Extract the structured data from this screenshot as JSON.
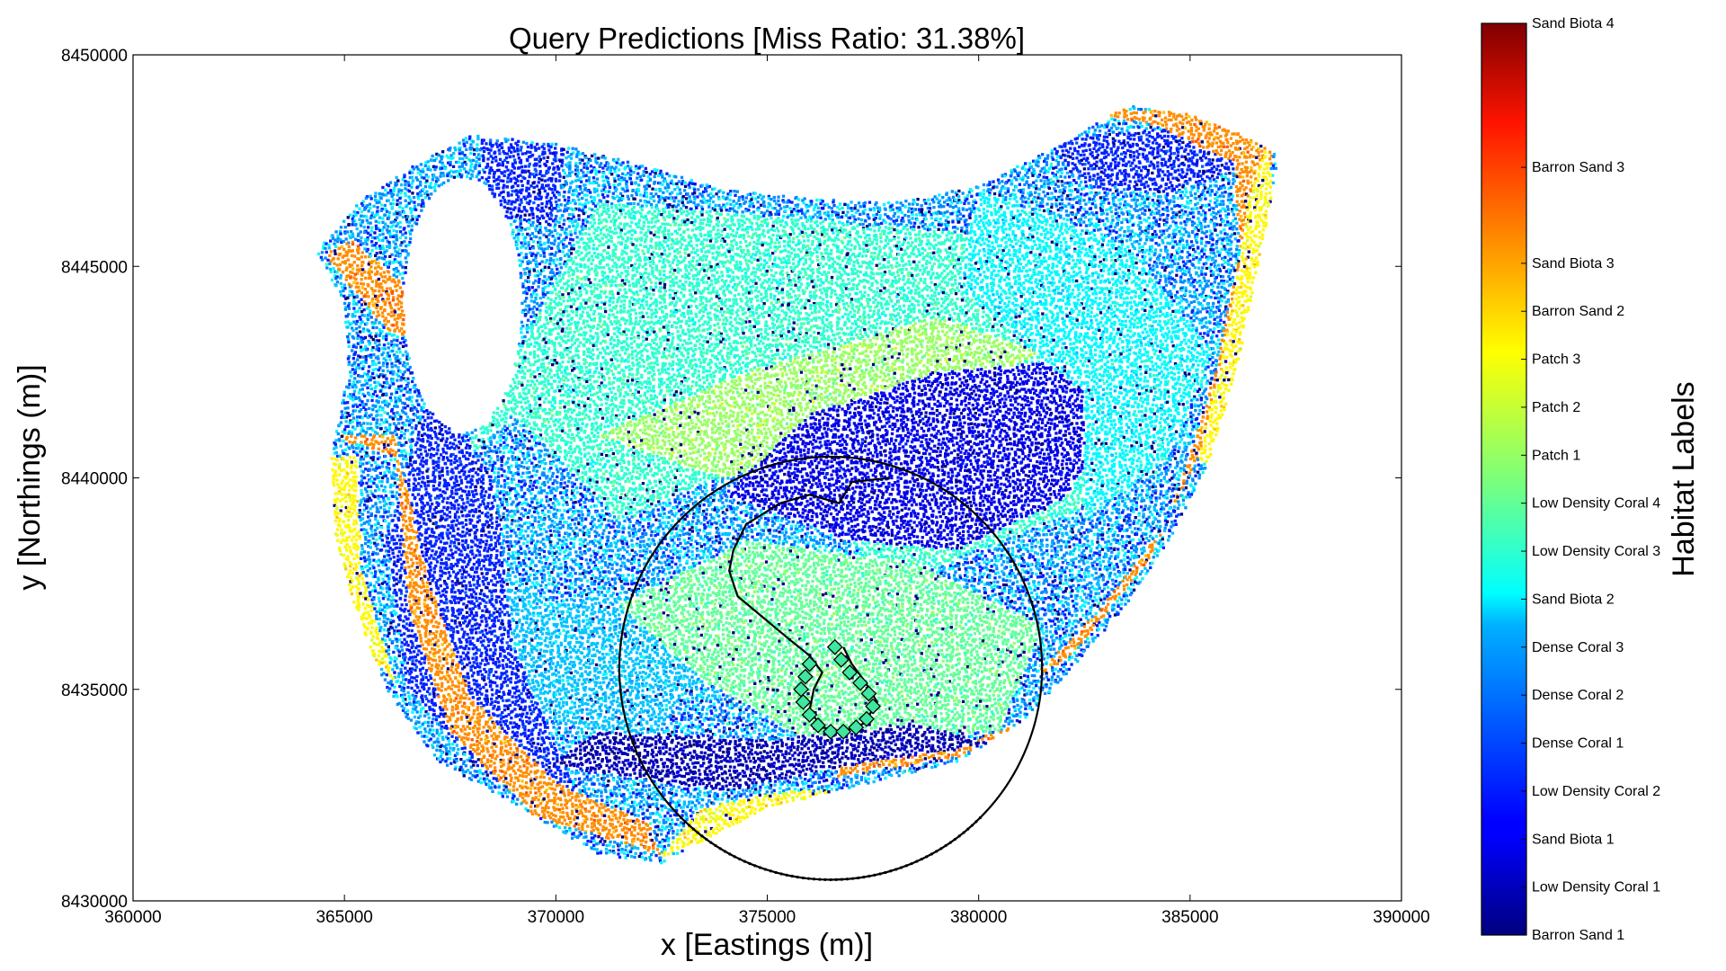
{
  "chart_data": {
    "type": "scatter",
    "title": "Query Predictions [Miss Ratio: 31.38%]",
    "xlabel": "x [Eastings (m)]",
    "ylabel": "y [Northings (m)]",
    "xlim": [
      360000,
      390000
    ],
    "ylim": [
      8430000,
      8450000
    ],
    "x_ticks": [
      "360000",
      "365000",
      "370000",
      "375000",
      "380000",
      "385000",
      "390000"
    ],
    "y_ticks": [
      "8430000",
      "8435000",
      "8440000",
      "8445000",
      "8450000"
    ],
    "grid": false,
    "colorbar": {
      "label": "Habitat Labels",
      "colormap": "jet",
      "tick_labels": [
        "Barron Sand 1",
        "Low Density Coral 1",
        "Sand Biota 1",
        "Low Density Coral 2",
        "Dense Coral 1",
        "Dense Coral 2",
        "Dense Coral 3",
        "Sand Biota 2",
        "Low Density Coral 3",
        "Low Density Coral 4",
        "Patch 1",
        "Patch 2",
        "Patch 3",
        "Barron Sand 2",
        "Sand Biota 3",
        "Barron Sand 3",
        "Sand Biota 4"
      ],
      "tick_values": [
        0,
        1,
        2,
        3,
        4,
        5,
        6,
        7,
        8,
        9,
        10,
        11,
        12,
        13,
        14,
        16,
        19
      ],
      "range": [
        0,
        19
      ]
    },
    "reef_outline": [
      [
        364300,
        8445300
      ],
      [
        365300,
        8446500
      ],
      [
        366500,
        8447300
      ],
      [
        368000,
        8448100
      ],
      [
        370000,
        8447900
      ],
      [
        372000,
        8447400
      ],
      [
        374000,
        8446800
      ],
      [
        376000,
        8446600
      ],
      [
        378000,
        8446500
      ],
      [
        380000,
        8446900
      ],
      [
        382000,
        8447900
      ],
      [
        383500,
        8448800
      ],
      [
        385000,
        8448600
      ],
      [
        386500,
        8448000
      ],
      [
        387100,
        8447600
      ],
      [
        386800,
        8446000
      ],
      [
        386200,
        8443000
      ],
      [
        385500,
        8440500
      ],
      [
        384500,
        8438500
      ],
      [
        383500,
        8437000
      ],
      [
        382200,
        8435500
      ],
      [
        381000,
        8434200
      ],
      [
        379500,
        8433300
      ],
      [
        377500,
        8432800
      ],
      [
        375000,
        8432200
      ],
      [
        372500,
        8430900
      ],
      [
        371000,
        8431100
      ],
      [
        369000,
        8432300
      ],
      [
        367200,
        8433300
      ],
      [
        366000,
        8435000
      ],
      [
        365300,
        8436800
      ],
      [
        364800,
        8438500
      ],
      [
        364700,
        8440500
      ],
      [
        365100,
        8442600
      ],
      [
        365000,
        8444200
      ]
    ],
    "void_region": {
      "center": [
        367800,
        8444100
      ],
      "radii": [
        1400,
        3000
      ],
      "description_free": true
    },
    "habitat_zones": [
      {
        "class": 8,
        "points": [
          [
            367500,
            8440000
          ],
          [
            371000,
            8446500
          ],
          [
            379500,
            8445800
          ],
          [
            384000,
            8443500
          ],
          [
            383000,
            8439500
          ],
          [
            378000,
            8437500
          ],
          [
            375000,
            8440500
          ],
          [
            371500,
            8439000
          ],
          [
            369000,
            8441500
          ]
        ]
      },
      {
        "class": 6,
        "points": [
          [
            368000,
            8438500
          ],
          [
            370000,
            8437000
          ],
          [
            373000,
            8437500
          ],
          [
            374000,
            8436000
          ],
          [
            372000,
            8433500
          ],
          [
            369500,
            8434500
          ]
        ]
      },
      {
        "class": 9,
        "points": [
          [
            371500,
            8437000
          ],
          [
            374500,
            8438500
          ],
          [
            378500,
            8438000
          ],
          [
            381500,
            8436500
          ],
          [
            380500,
            8434000
          ],
          [
            376000,
            8433800
          ],
          [
            373500,
            8435200
          ]
        ]
      },
      {
        "class": 10,
        "points": [
          [
            371000,
            8441000
          ],
          [
            374500,
            8442500
          ],
          [
            379000,
            8443800
          ],
          [
            381500,
            8443000
          ],
          [
            378000,
            8441200
          ],
          [
            374000,
            8440000
          ]
        ]
      },
      {
        "class": 2,
        "points": [
          [
            376000,
            8441500
          ],
          [
            379000,
            8442500
          ],
          [
            382500,
            8442800
          ],
          [
            383300,
            8441300
          ],
          [
            382000,
            8439500
          ],
          [
            379500,
            8438300
          ],
          [
            377000,
            8438500
          ],
          [
            374000,
            8439600
          ]
        ]
      },
      {
        "class": 3,
        "points": [
          [
            381500,
            8448000
          ],
          [
            385000,
            8448300
          ],
          [
            386300,
            8447400
          ],
          [
            384500,
            8446700
          ],
          [
            382500,
            8447000
          ]
        ]
      },
      {
        "class": 3,
        "points": [
          [
            367000,
            8442000
          ],
          [
            368500,
            8440000
          ],
          [
            369000,
            8436000
          ],
          [
            370500,
            8432500
          ],
          [
            368500,
            8432800
          ],
          [
            366500,
            8435000
          ],
          [
            366000,
            8438500
          ]
        ]
      },
      {
        "class": 3,
        "points": [
          [
            368200,
            8448000
          ],
          [
            370200,
            8447800
          ],
          [
            370000,
            8446000
          ],
          [
            368500,
            8446200
          ]
        ]
      },
      {
        "class": 7,
        "points": [
          [
            380000,
            8446800
          ],
          [
            383500,
            8445500
          ],
          [
            385500,
            8443000
          ],
          [
            384500,
            8440500
          ],
          [
            382500,
            8439000
          ],
          [
            382500,
            8442000
          ],
          [
            379500,
            8444500
          ]
        ]
      },
      {
        "class": 14,
        "points": [
          [
            364600,
            8441000
          ],
          [
            366200,
            8441000
          ],
          [
            366500,
            8437000
          ],
          [
            367500,
            8434000
          ],
          [
            369500,
            8432000
          ],
          [
            372500,
            8431100
          ],
          [
            372200,
            8431800
          ],
          [
            370000,
            8432800
          ],
          [
            368000,
            8434800
          ],
          [
            367000,
            8437500
          ],
          [
            366300,
            8440500
          ]
        ]
      },
      {
        "class": 14,
        "points": [
          [
            382000,
            8448700
          ],
          [
            385000,
            8448700
          ],
          [
            387000,
            8447800
          ],
          [
            386300,
            8444000
          ],
          [
            385200,
            8440500
          ],
          [
            384000,
            8438000
          ],
          [
            382200,
            8435800
          ],
          [
            381200,
            8435200
          ],
          [
            382800,
            8436800
          ],
          [
            384500,
            8439000
          ],
          [
            385600,
            8442500
          ],
          [
            386200,
            8445500
          ],
          [
            386000,
            8447500
          ],
          [
            384000,
            8448400
          ]
        ]
      },
      {
        "class": 14,
        "points": [
          [
            364500,
            8445300
          ],
          [
            366000,
            8443500
          ],
          [
            367500,
            8443000
          ],
          [
            366500,
            8444500
          ],
          [
            365200,
            8445600
          ]
        ]
      },
      {
        "class": 14,
        "points": [
          [
            376500,
            8432900
          ],
          [
            379500,
            8433400
          ],
          [
            381000,
            8434200
          ],
          [
            379600,
            8433700
          ],
          [
            377000,
            8433400
          ]
        ]
      },
      {
        "class": 12,
        "points": [
          [
            364700,
            8440500
          ],
          [
            365300,
            8440500
          ],
          [
            365400,
            8437800
          ],
          [
            366200,
            8435200
          ],
          [
            365200,
            8436200
          ],
          [
            364800,
            8438200
          ]
        ]
      },
      {
        "class": 12,
        "points": [
          [
            386800,
            8447800
          ],
          [
            387100,
            8446000
          ],
          [
            386500,
            8442500
          ],
          [
            385800,
            8440000
          ],
          [
            385200,
            8440500
          ],
          [
            385900,
            8443500
          ],
          [
            386400,
            8446600
          ]
        ]
      },
      {
        "class": 12,
        "points": [
          [
            372400,
            8431000
          ],
          [
            374600,
            8431800
          ],
          [
            377000,
            8432600
          ],
          [
            375500,
            8432600
          ],
          [
            373500,
            8432200
          ]
        ]
      },
      {
        "class": 1,
        "points": [
          [
            369800,
            8433200
          ],
          [
            374000,
            8432600
          ],
          [
            377000,
            8433200
          ],
          [
            380300,
            8433700
          ],
          [
            378500,
            8434200
          ],
          [
            375000,
            8433800
          ],
          [
            371000,
            8434000
          ]
        ]
      }
    ],
    "query_circle": {
      "center": [
        376500,
        8435500
      ],
      "radius": 5000
    },
    "path": [
      [
        377900,
        8440000
      ],
      [
        377000,
        8439900
      ],
      [
        376700,
        8439400
      ],
      [
        376000,
        8439600
      ],
      [
        375300,
        8439400
      ],
      [
        374500,
        8438900
      ],
      [
        374200,
        8438300
      ],
      [
        374100,
        8437800
      ],
      [
        374300,
        8437200
      ],
      [
        374900,
        8436700
      ],
      [
        375500,
        8436200
      ],
      [
        376000,
        8435800
      ],
      [
        376300,
        8435400
      ],
      [
        376100,
        8435000
      ],
      [
        376000,
        8434500
      ],
      [
        376300,
        8434100
      ],
      [
        376800,
        8434000
      ],
      [
        377300,
        8434200
      ],
      [
        377600,
        8434700
      ],
      [
        377300,
        8435200
      ],
      [
        377000,
        8435600
      ],
      [
        376800,
        8436000
      ]
    ],
    "path_markers": [
      [
        376000,
        8435600
      ],
      [
        375900,
        8435300
      ],
      [
        375800,
        8435000
      ],
      [
        375850,
        8434700
      ],
      [
        376000,
        8434400
      ],
      [
        376200,
        8434150
      ],
      [
        376500,
        8434000
      ],
      [
        376800,
        8434000
      ],
      [
        377100,
        8434100
      ],
      [
        377350,
        8434300
      ],
      [
        377500,
        8434600
      ],
      [
        377400,
        8434900
      ],
      [
        377200,
        8435150
      ],
      [
        376950,
        8435400
      ],
      [
        376750,
        8435700
      ],
      [
        376600,
        8436000
      ]
    ]
  }
}
